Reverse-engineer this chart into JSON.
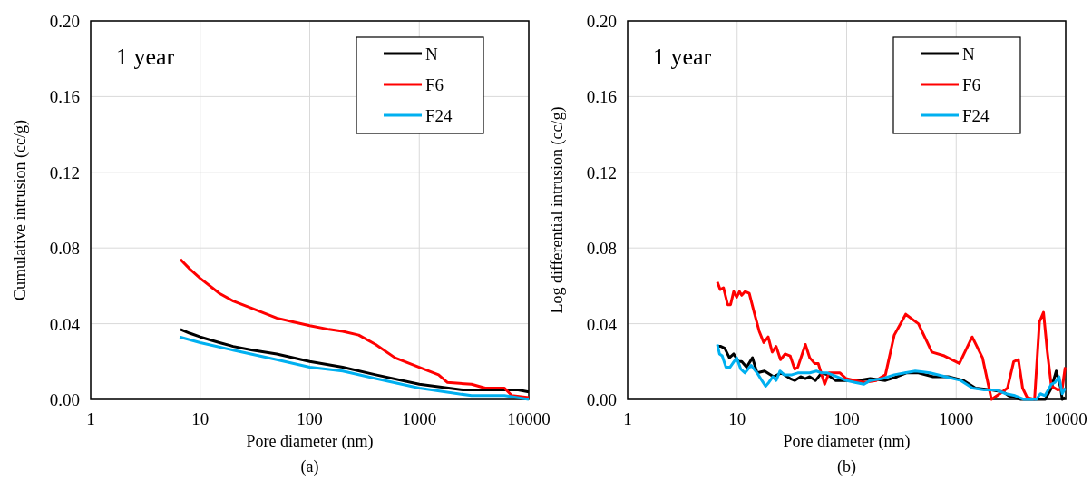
{
  "chart_data": [
    {
      "type": "line",
      "xlabel": "Pore diameter (nm)",
      "ylabel": "Cumulative intrusion (cc/g)",
      "annotations": [
        "1 year",
        "(a)"
      ],
      "log": "x",
      "xlim": [
        1,
        10000
      ],
      "xticks": [
        1,
        10,
        100,
        1000,
        10000
      ],
      "ylim": [
        0,
        0.2
      ],
      "yticks": [
        {
          "value": 0,
          "label": "0.00"
        },
        {
          "value": 0.04,
          "label": "0.04"
        },
        {
          "value": 0.08,
          "label": "0.08"
        },
        {
          "value": 0.12,
          "label": "0.12"
        },
        {
          "value": 0.16,
          "label": "0.16"
        },
        {
          "value": 0.2,
          "label": "0.20"
        }
      ],
      "grid": true,
      "legend": "top right",
      "series": [
        {
          "name": "N",
          "color": "#000000",
          "x": [
            6.6,
            8,
            10,
            15,
            20,
            30,
            50,
            100,
            200,
            400,
            1000,
            2500,
            8000,
            10000
          ],
          "values": [
            0.037,
            0.035,
            0.033,
            0.03,
            0.028,
            0.026,
            0.024,
            0.02,
            0.017,
            0.013,
            0.008,
            0.005,
            0.005,
            0.004
          ]
        },
        {
          "name": "F6",
          "color": "#ff0000",
          "x": [
            6.6,
            8,
            10,
            15,
            20,
            30,
            50,
            70,
            100,
            150,
            200,
            280,
            400,
            600,
            1000,
            1500,
            1800,
            3000,
            4000,
            6000,
            7000,
            10000
          ],
          "values": [
            0.074,
            0.069,
            0.064,
            0.056,
            0.052,
            0.048,
            0.043,
            0.041,
            0.039,
            0.037,
            0.036,
            0.034,
            0.029,
            0.022,
            0.017,
            0.013,
            0.009,
            0.008,
            0.006,
            0.006,
            0.002,
            0.001
          ]
        },
        {
          "name": "F24",
          "color": "#00b0f0",
          "x": [
            6.5,
            10,
            20,
            50,
            100,
            200,
            400,
            1000,
            3000,
            6000,
            10000
          ],
          "values": [
            0.033,
            0.03,
            0.026,
            0.021,
            0.017,
            0.015,
            0.011,
            0.006,
            0.002,
            0.002,
            0
          ]
        }
      ]
    },
    {
      "type": "line",
      "xlabel": "Pore diameter (nm)",
      "ylabel": "Log differential intrusion (cc/g)",
      "annotations": [
        "1 year",
        "(b)"
      ],
      "log": "x",
      "xlim": [
        1,
        10000
      ],
      "xticks": [
        1,
        10,
        100,
        1000,
        10000
      ],
      "ylim": [
        0,
        0.2
      ],
      "yticks": [
        {
          "value": 0,
          "label": "0.00"
        },
        {
          "value": 0.04,
          "label": "0.04"
        },
        {
          "value": 0.08,
          "label": "0.08"
        },
        {
          "value": 0.12,
          "label": "0.12"
        },
        {
          "value": 0.16,
          "label": "0.16"
        },
        {
          "value": 0.2,
          "label": "0.20"
        }
      ],
      "grid": true,
      "legend": "top right",
      "series": [
        {
          "name": "N",
          "color": "#000000",
          "x": [
            6.6,
            7.1,
            7.7,
            8.5,
            9.3,
            10.3,
            11,
            12.2,
            13.8,
            15.2,
            17.8,
            21.5,
            25.3,
            30.5,
            33.5,
            38,
            42,
            46,
            52,
            59,
            67,
            79,
            99,
            127,
            164,
            226,
            289,
            350,
            452,
            615,
            850,
            1170,
            1500,
            2100,
            2700,
            3000,
            3900,
            6500,
            7400,
            8200,
            9000,
            9300,
            9900
          ],
          "values": [
            0.028,
            0.028,
            0.027,
            0.022,
            0.024,
            0.02,
            0.02,
            0.017,
            0.022,
            0.014,
            0.015,
            0.012,
            0.014,
            0.011,
            0.01,
            0.012,
            0.011,
            0.012,
            0.01,
            0.014,
            0.013,
            0.01,
            0.01,
            0.01,
            0.011,
            0.01,
            0.012,
            0.014,
            0.014,
            0.012,
            0.012,
            0.01,
            0.006,
            0.005,
            0.004,
            0.002,
            0,
            0,
            0.006,
            0.015,
            0.006,
            0,
            0.001
          ]
        },
        {
          "name": "F6",
          "color": "#ff0000",
          "x": [
            6.6,
            7,
            7.5,
            8.2,
            8.7,
            9.3,
            9.9,
            10.5,
            11,
            11.8,
            12.9,
            14.3,
            15.9,
            17.5,
            19.2,
            20.9,
            22.7,
            24.9,
            27.4,
            30.5,
            33.5,
            35.8,
            42,
            46,
            51,
            55,
            63,
            69,
            87,
            99,
            119,
            144,
            186,
            226,
            272,
            346,
            452,
            600,
            780,
            1070,
            1400,
            1740,
            2100,
            2500,
            2940,
            3350,
            3700,
            4040,
            4450,
            5200,
            5760,
            6270,
            6800,
            7400,
            8500,
            9300,
            9900
          ],
          "values": [
            0.062,
            0.058,
            0.059,
            0.05,
            0.05,
            0.057,
            0.054,
            0.057,
            0.055,
            0.057,
            0.056,
            0.046,
            0.036,
            0.03,
            0.033,
            0.025,
            0.028,
            0.021,
            0.024,
            0.023,
            0.016,
            0.017,
            0.029,
            0.022,
            0.019,
            0.019,
            0.008,
            0.014,
            0.014,
            0.011,
            0.01,
            0.009,
            0.01,
            0.013,
            0.034,
            0.045,
            0.04,
            0.025,
            0.023,
            0.019,
            0.033,
            0.022,
            0,
            0.003,
            0.006,
            0.02,
            0.021,
            0.006,
            0.001,
            0,
            0.041,
            0.046,
            0.025,
            0.007,
            0.005,
            0.006,
            0.017
          ]
        },
        {
          "name": "F24",
          "color": "#00b0f0",
          "x": [
            6.6,
            6.9,
            7.3,
            7.9,
            8.6,
            9.9,
            10.8,
            11.8,
            13.4,
            15.2,
            16.8,
            18.2,
            19.5,
            21.2,
            22.7,
            24.6,
            26.9,
            31.6,
            35.8,
            40,
            46,
            53,
            59,
            67,
            81,
            99,
            119,
            144,
            164,
            212,
            272,
            340,
            423,
            578,
            800,
            1100,
            1410,
            1800,
            2330,
            2850,
            3440,
            4160,
            5400,
            5880,
            6470,
            7400,
            8000,
            8700,
            9300,
            9900
          ],
          "values": [
            0.029,
            0.024,
            0.023,
            0.017,
            0.017,
            0.022,
            0.016,
            0.014,
            0.018,
            0.014,
            0.01,
            0.007,
            0.009,
            0.012,
            0.01,
            0.015,
            0.013,
            0.013,
            0.014,
            0.014,
            0.014,
            0.015,
            0.014,
            0.014,
            0.012,
            0.01,
            0.009,
            0.008,
            0.01,
            0.011,
            0.013,
            0.014,
            0.015,
            0.014,
            0.012,
            0.01,
            0.006,
            0.005,
            0.005,
            0.003,
            0.002,
            0,
            0,
            0.003,
            0.002,
            0.008,
            0.009,
            0.012,
            0.003,
            0.006
          ]
        }
      ]
    }
  ]
}
